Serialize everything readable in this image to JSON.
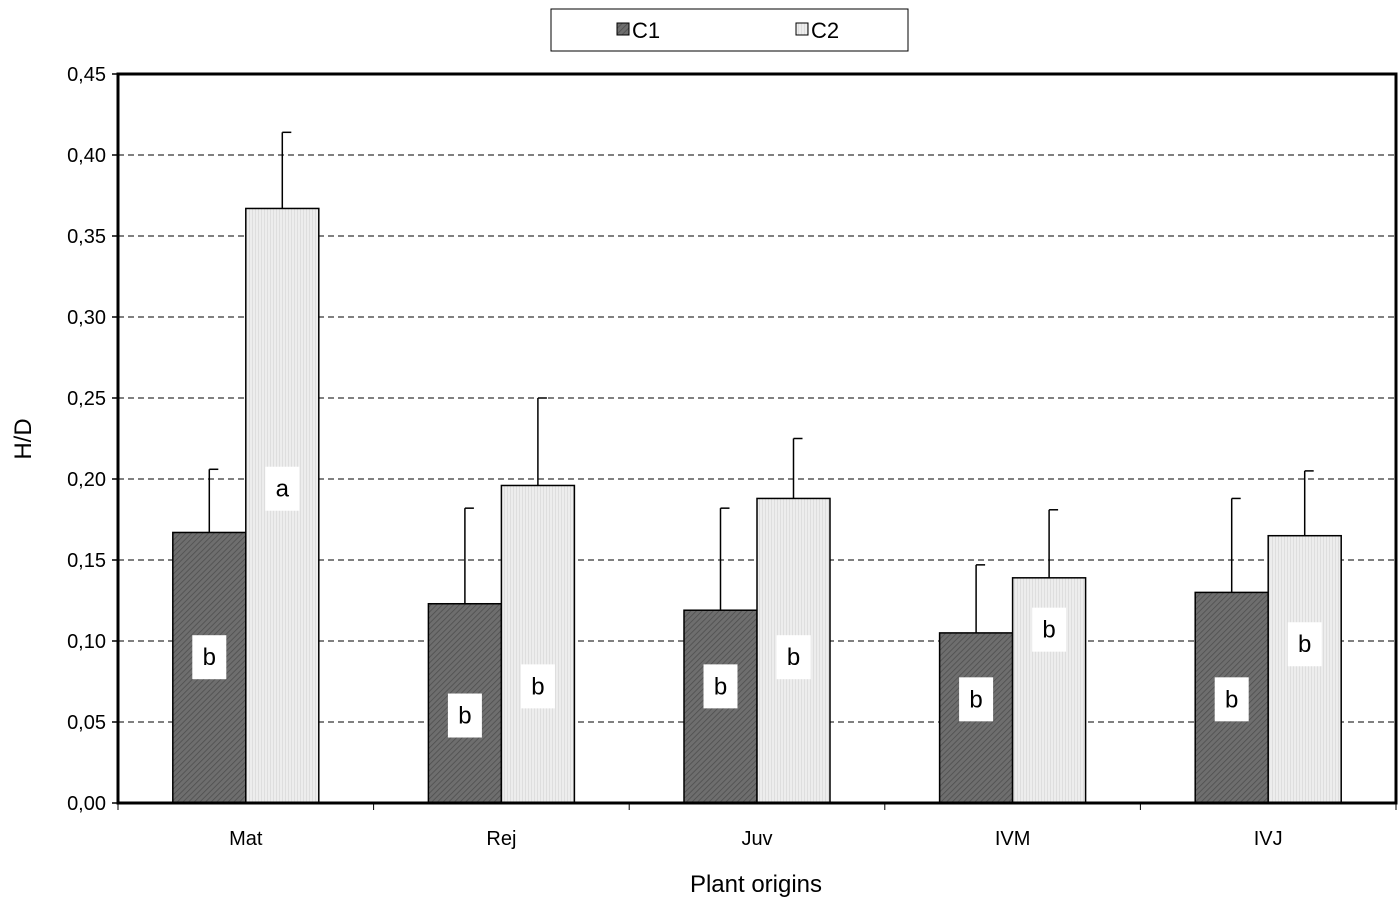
{
  "chart_data": {
    "type": "bar",
    "title": "",
    "xlabel": "Plant origins",
    "ylabel": "H/D",
    "ylim": [
      0,
      0.45
    ],
    "yticks": [
      0.0,
      0.05,
      0.1,
      0.15,
      0.2,
      0.25,
      0.3,
      0.35,
      0.4,
      0.45
    ],
    "ytick_labels": [
      "0,00",
      "0,05",
      "0,10",
      "0,15",
      "0,20",
      "0,25",
      "0,30",
      "0,35",
      "0,40",
      "0,45"
    ],
    "grid": "horizontal dashed",
    "legend_position": "top-center",
    "categories": [
      "Mat",
      "Rej",
      "Juv",
      "IVM",
      "IVJ"
    ],
    "series": [
      {
        "name": "C1",
        "color": "#6e6e6e",
        "values": [
          0.167,
          0.123,
          0.119,
          0.105,
          0.13
        ],
        "errors": [
          0.039,
          0.059,
          0.063,
          0.042,
          0.058
        ],
        "letters": [
          "b",
          "b",
          "b",
          "b",
          "b"
        ],
        "letter_values": [
          0.09,
          0.054,
          0.072,
          0.064,
          0.064
        ]
      },
      {
        "name": "C2",
        "color": "#e6e6e6",
        "values": [
          0.367,
          0.196,
          0.188,
          0.139,
          0.165
        ],
        "errors": [
          0.047,
          0.054,
          0.037,
          0.042,
          0.04
        ],
        "letters": [
          "a",
          "b",
          "b",
          "b",
          "b"
        ],
        "letter_values": [
          0.194,
          0.072,
          0.09,
          0.107,
          0.098
        ]
      }
    ]
  }
}
